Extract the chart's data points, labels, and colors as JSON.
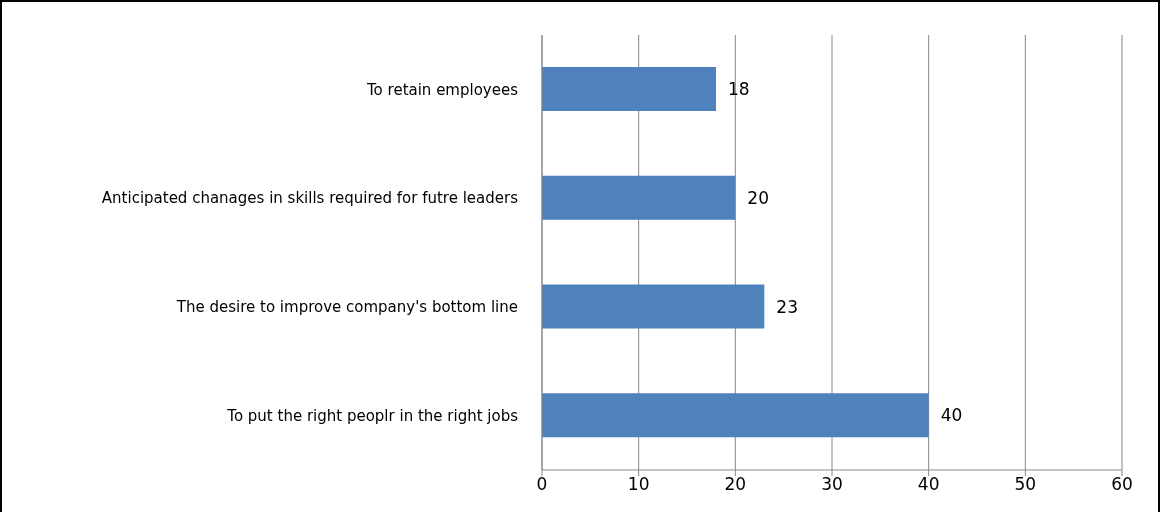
{
  "chart_data": {
    "type": "bar",
    "orientation": "horizontal",
    "categories": [
      "To retain employees",
      "Anticipated chanages in skills required for futre leaders",
      "The desire to improve company's bottom line",
      "To put the right peoplr in the right jobs"
    ],
    "values": [
      18,
      20,
      23,
      40
    ],
    "color": "#4f81bd",
    "xlim": [
      0,
      60
    ],
    "xticks": [
      0,
      10,
      20,
      30,
      40,
      50,
      60
    ],
    "grid": "x",
    "data_labels": true
  }
}
